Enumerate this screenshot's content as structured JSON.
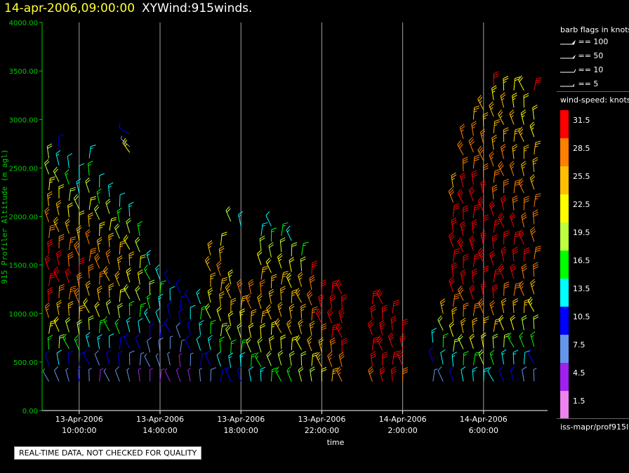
{
  "header": {
    "timestamp": "14-apr-2006,09:00:00",
    "title": "XYWind:915winds."
  },
  "notice": "REAL-TIME DATA, NOT CHECKED FOR QUALITY",
  "legend": {
    "flags_title": "barb flags in knots",
    "flags": [
      {
        "label": "== 100"
      },
      {
        "label": "== 50"
      },
      {
        "label": "== 10"
      },
      {
        "label": "== 5"
      }
    ],
    "speed_title": "wind-speed: knots",
    "colorbar": [
      {
        "label": "31.5",
        "color": "#ff0000"
      },
      {
        "label": "28.5",
        "color": "#ff7f00"
      },
      {
        "label": "25.5",
        "color": "#ffbf00"
      },
      {
        "label": "22.5",
        "color": "#ffff00"
      },
      {
        "label": "19.5",
        "color": "#bfff3f"
      },
      {
        "label": "16.5",
        "color": "#00ff00"
      },
      {
        "label": "13.5",
        "color": "#00ffff"
      },
      {
        "label": "10.5",
        "color": "#0000ff"
      },
      {
        "label": "7.5",
        "color": "#6495ed"
      },
      {
        "label": "4.5",
        "color": "#a020f0"
      },
      {
        "label": "1.5",
        "color": "#ee82ee"
      }
    ],
    "source": "iss-mapr/prof915l"
  },
  "chart_data": {
    "type": "scatter",
    "subtype": "wind-barbs",
    "xlabel": "time",
    "ylabel": "915 Profiler Altitude (m agl)",
    "ylim": [
      0,
      4000
    ],
    "yticks": [
      "0.00",
      "500.00",
      "1000.00",
      "1500.00",
      "2000.00",
      "2500.00",
      "3000.00",
      "3500.00",
      "4000.00"
    ],
    "xlim": [
      "2006-04-13T08:10",
      "2006-04-14T09:10"
    ],
    "xticks": [
      {
        "date": "13-Apr-2006",
        "time": "10:00:00"
      },
      {
        "date": "13-Apr-2006",
        "time": "14:00:00"
      },
      {
        "date": "13-Apr-2006",
        "time": "18:00:00"
      },
      {
        "date": "13-Apr-2006",
        "time": "22:00:00"
      },
      {
        "date": "14-Apr-2006",
        "time": "2:00:00"
      },
      {
        "date": "14-Apr-2006",
        "time": "6:00:00"
      }
    ],
    "grid": "vertical lines at x ticks",
    "profiles": [
      {
        "time": "13-Apr-2006 08:30",
        "top": 2600,
        "speeds": [
          6,
          10,
          17,
          23,
          27,
          30,
          31,
          32,
          31,
          29,
          27,
          25,
          23,
          20,
          18
        ]
      },
      {
        "time": "13-Apr-2006 09:00",
        "top": 2700,
        "speeds": [
          8,
          12,
          18,
          21,
          26,
          29,
          31,
          30,
          28,
          26,
          24,
          22,
          20,
          14,
          10
        ]
      },
      {
        "time": "13-Apr-2006 09:30",
        "top": 2500,
        "speeds": [
          7,
          11,
          15,
          20,
          25,
          28,
          30,
          29,
          27,
          24,
          22,
          20,
          16,
          12
        ]
      },
      {
        "time": "13-Apr-2006 10:00",
        "top": 2400,
        "speeds": [
          9,
          10,
          16,
          19,
          24,
          27,
          29,
          30,
          28,
          25,
          22,
          19,
          14,
          12
        ]
      },
      {
        "time": "13-Apr-2006 10:30",
        "top": 2600,
        "speeds": [
          6,
          9,
          14,
          18,
          22,
          26,
          28,
          29,
          27,
          24,
          21,
          18,
          15,
          14
        ]
      },
      {
        "time": "13-Apr-2006 11:00",
        "top": 2300,
        "speeds": [
          5,
          8,
          13,
          17,
          21,
          25,
          27,
          28,
          26,
          23,
          20,
          16,
          12
        ]
      },
      {
        "time": "13-Apr-2006 11:30",
        "top": 2200,
        "speeds": [
          7,
          10,
          12,
          16,
          20,
          24,
          26,
          27,
          25,
          22,
          18,
          14
        ]
      },
      {
        "time": "13-Apr-2006 12:00",
        "top": 2100,
        "speeds": [
          8,
          9,
          11,
          15,
          19,
          22,
          25,
          26,
          24,
          20,
          16,
          12
        ]
      },
      {
        "time": "13-Apr-2006 12:30",
        "top": 2000,
        "speeds": [
          6,
          8,
          10,
          13,
          17,
          20,
          23,
          24,
          22,
          18,
          14
        ]
      },
      {
        "time": "13-Apr-2006 13:00",
        "top": 1800,
        "speeds": [
          5,
          7,
          9,
          12,
          15,
          18,
          21,
          22,
          20,
          16
        ]
      },
      {
        "time": "13-Apr-2006 13:30",
        "top": 1500,
        "speeds": [
          4,
          6,
          8,
          11,
          14,
          16,
          18,
          17,
          14
        ]
      },
      {
        "time": "13-Apr-2006 14:00",
        "top": 1350,
        "speeds": [
          5,
          6,
          8,
          10,
          12,
          14,
          15,
          13
        ]
      },
      {
        "time": "13-Apr-2006 14:30",
        "top": 1300,
        "speeds": [
          4,
          6,
          7,
          9,
          11,
          12,
          10
        ]
      },
      {
        "time": "13-Apr-2006 15:00",
        "top": 1200,
        "speeds": [
          3,
          5,
          7,
          8,
          10,
          11,
          9
        ]
      },
      {
        "time": "13-Apr-2006 15:30",
        "top": 1100,
        "speeds": [
          5,
          7,
          9,
          11,
          12,
          10
        ]
      },
      {
        "time": "13-Apr-2006 16:00",
        "top": 1100,
        "speeds": [
          6,
          9,
          12,
          14,
          16,
          14
        ]
      },
      {
        "time": "13-Apr-2006 16:30",
        "top": 1600,
        "speeds": [
          8,
          11,
          14,
          17,
          20,
          23,
          25,
          26,
          24
        ]
      },
      {
        "time": "13-Apr-2006 17:00",
        "top": 1700,
        "speeds": [
          9,
          12,
          15,
          18,
          21,
          24,
          26,
          27,
          25,
          22
        ]
      },
      {
        "time": "13-Apr-2006 17:30",
        "top": 1300,
        "speeds": [
          10,
          13,
          16,
          19,
          22,
          24,
          25,
          23
        ]
      },
      {
        "time": "13-Apr-2006 18:00",
        "top": 1200,
        "speeds": [
          11,
          14,
          17,
          20,
          23,
          26,
          28
        ]
      },
      {
        "time": "13-Apr-2006 18:30",
        "top": 1200,
        "speeds": [
          12,
          15,
          18,
          21,
          24,
          27,
          29
        ]
      },
      {
        "time": "13-Apr-2006 19:00",
        "top": 1800,
        "speeds": [
          14,
          17,
          20,
          22,
          24,
          26,
          27,
          25,
          22,
          18,
          14
        ]
      },
      {
        "time": "13-Apr-2006 19:30",
        "top": 1900,
        "speeds": [
          15,
          18,
          21,
          23,
          24,
          25,
          24,
          22,
          19,
          15,
          12
        ]
      },
      {
        "time": "13-Apr-2006 20:00",
        "top": 1800,
        "speeds": [
          16,
          19,
          22,
          24,
          25,
          26,
          25,
          23,
          20,
          16
        ]
      },
      {
        "time": "13-Apr-2006 20:30",
        "top": 1750,
        "speeds": [
          17,
          20,
          22,
          24,
          25,
          25,
          23,
          21,
          18,
          14
        ]
      },
      {
        "time": "13-Apr-2006 21:00",
        "top": 1600,
        "speeds": [
          18,
          20,
          22,
          24,
          25,
          26,
          24,
          20,
          16
        ]
      },
      {
        "time": "13-Apr-2006 21:30",
        "top": 1400,
        "speeds": [
          20,
          22,
          24,
          26,
          27,
          28,
          29,
          30
        ]
      },
      {
        "time": "13-Apr-2006 22:00",
        "top": 1200,
        "speeds": [
          22,
          24,
          26,
          28,
          30,
          31,
          32
        ]
      },
      {
        "time": "13-Apr-2006 22:30",
        "top": 1200,
        "speeds": [
          25,
          27,
          29,
          31,
          32,
          32,
          31
        ]
      },
      {
        "time": "13-Apr-2006 23:00",
        "top": 1200,
        "speeds": [
          27,
          29,
          31,
          32,
          33,
          32,
          31
        ]
      },
      {
        "time": "14-Apr-2006 00:30",
        "top": 1100,
        "speeds": [
          29,
          30,
          31,
          32,
          32,
          31
        ]
      },
      {
        "time": "14-Apr-2006 01:00",
        "top": 1100,
        "speeds": [
          30,
          31,
          32,
          33,
          32,
          31
        ]
      },
      {
        "time": "14-Apr-2006 01:30",
        "top": 1000,
        "speeds": [
          30,
          31,
          32,
          32,
          31
        ]
      },
      {
        "time": "14-Apr-2006 02:00",
        "top": 800,
        "speeds": [
          29,
          30,
          31,
          30
        ]
      },
      {
        "time": "14-Apr-2006 03:30",
        "top": 700,
        "speeds": [
          6,
          10,
          14
        ]
      },
      {
        "time": "14-Apr-2006 04:00",
        "top": 1000,
        "speeds": [
          8,
          12,
          16,
          20,
          24
        ]
      },
      {
        "time": "14-Apr-2006 04:30",
        "top": 2300,
        "speeds": [
          10,
          14,
          18,
          22,
          26,
          28,
          30,
          31,
          32,
          32,
          31,
          30,
          28,
          26
        ]
      },
      {
        "time": "14-Apr-2006 05:00",
        "top": 2800,
        "speeds": [
          12,
          16,
          20,
          24,
          27,
          29,
          31,
          32,
          33,
          33,
          32,
          31,
          30,
          29,
          28,
          27
        ]
      },
      {
        "time": "14-Apr-2006 05:30",
        "top": 3000,
        "speeds": [
          13,
          17,
          21,
          25,
          28,
          30,
          31,
          32,
          33,
          33,
          32,
          31,
          30,
          29,
          28,
          27,
          26
        ]
      },
      {
        "time": "14-Apr-2006 06:00",
        "top": 3100,
        "speeds": [
          14,
          18,
          22,
          26,
          29,
          31,
          32,
          33,
          33,
          32,
          31,
          30,
          29,
          28,
          27,
          26,
          25
        ]
      },
      {
        "time": "14-Apr-2006 06:30",
        "top": 3200,
        "speeds": [
          12,
          16,
          20,
          24,
          27,
          30,
          31,
          32,
          32,
          31,
          30,
          29,
          28,
          27,
          26,
          25,
          24,
          23
        ]
      },
      {
        "time": "14-Apr-2006 07:00",
        "top": 3300,
        "speeds": [
          10,
          14,
          18,
          22,
          26,
          29,
          31,
          32,
          32,
          31,
          30,
          29,
          28,
          27,
          26,
          25,
          24,
          23
        ]
      },
      {
        "time": "14-Apr-2006 07:30",
        "top": 3300,
        "speeds": [
          9,
          13,
          17,
          21,
          25,
          28,
          30,
          31,
          31,
          30,
          29,
          28,
          27,
          26,
          25,
          24,
          23,
          22
        ]
      },
      {
        "time": "14-Apr-2006 08:00",
        "top": 3300,
        "speeds": [
          8,
          12,
          16,
          20,
          24,
          27,
          29,
          30,
          30,
          29,
          28,
          27,
          26,
          25,
          24,
          23,
          22,
          21
        ]
      },
      {
        "time": "14-Apr-2006 08:30",
        "top": 3000,
        "speeds": [
          7,
          11,
          15,
          19,
          23,
          26,
          28,
          29,
          29,
          28,
          27,
          26,
          25,
          24,
          23,
          22
        ]
      }
    ],
    "scattered_barbs": [
      {
        "time": "13-Apr-2006 12:30",
        "alt": 2850,
        "speed": 10
      },
      {
        "time": "13-Apr-2006 12:30",
        "alt": 2720,
        "speed": 6
      },
      {
        "time": "13-Apr-2006 12:30",
        "alt": 2660,
        "speed": 23
      },
      {
        "time": "13-Apr-2006 17:30",
        "alt": 1950,
        "speed": 18
      },
      {
        "time": "13-Apr-2006 18:00",
        "alt": 1900,
        "speed": 13
      },
      {
        "time": "14-Apr-2006 06:30",
        "alt": 3350,
        "speed": 31
      },
      {
        "time": "14-Apr-2006 08:30",
        "alt": 3300,
        "speed": 31
      }
    ]
  }
}
